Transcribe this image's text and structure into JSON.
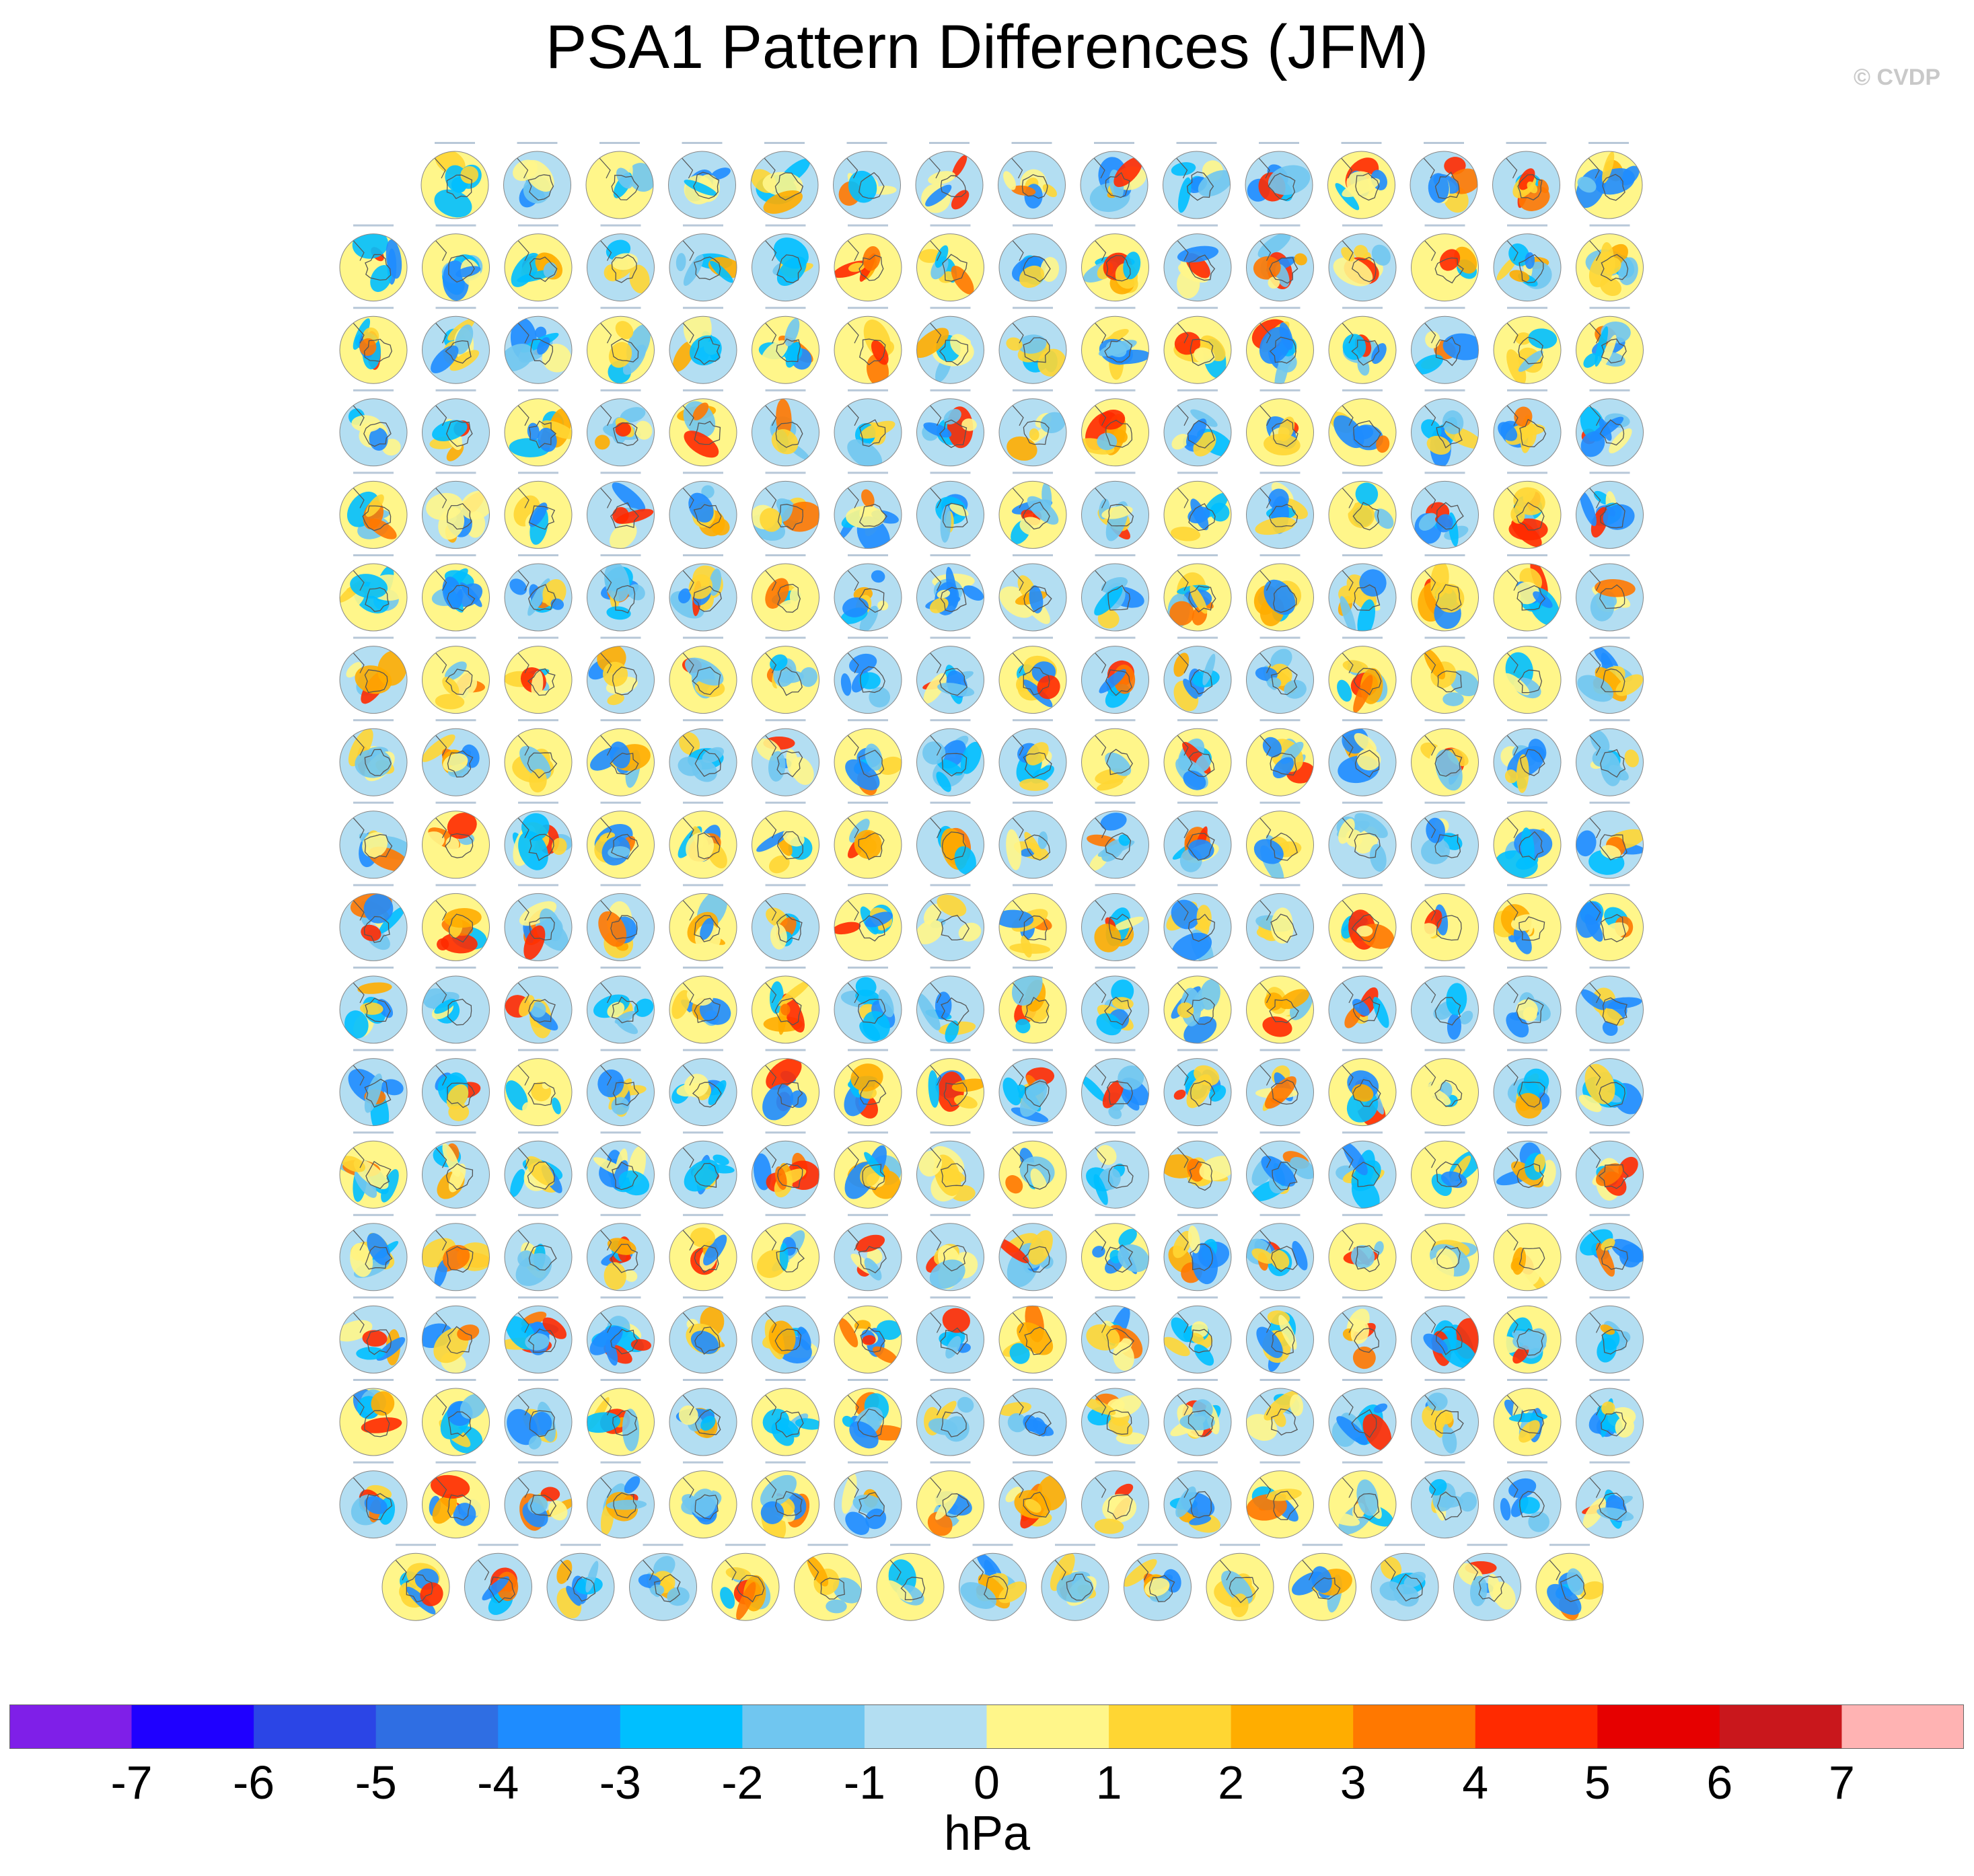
{
  "title": "PSA1 Pattern Differences (JFM)",
  "watermark": "© CVDP",
  "chart_data": {
    "type": "heatmap",
    "title": "PSA1 Pattern Differences (JFM)",
    "description_of_panels": "Grid of Southern Hemisphere polar-stereographic maps; each panel shows a pattern difference field",
    "panel_rows": [
      15,
      16,
      16,
      16,
      16,
      16,
      16,
      16,
      16,
      16,
      16,
      16,
      16,
      16,
      16,
      16,
      16,
      15
    ],
    "colorbar": {
      "units": "hPa",
      "ticks": [
        -7,
        -6,
        -5,
        -4,
        -3,
        -2,
        -1,
        0,
        1,
        2,
        3,
        4,
        5,
        6,
        7
      ],
      "colors": [
        "#7f1fe8",
        "#1f00ff",
        "#2b45e6",
        "#2f6ee3",
        "#1e8cff",
        "#00bfff",
        "#70c6f0",
        "#b3def2",
        "#fff68a",
        "#ffd633",
        "#ffad00",
        "#ff7800",
        "#ff2a00",
        "#e60000",
        "#c9171c",
        "#ffb3b3"
      ]
    }
  }
}
